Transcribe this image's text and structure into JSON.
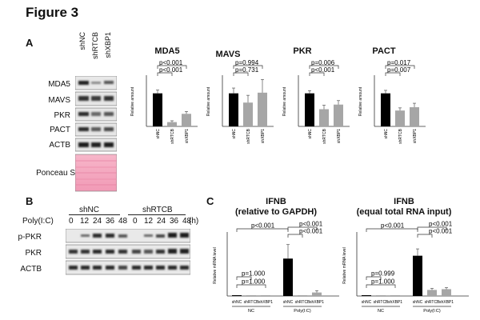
{
  "figure_title": "Figure 3",
  "panels": {
    "A": "A",
    "B": "B",
    "C": "C"
  },
  "panelA": {
    "lanes": [
      "shNC",
      "shRTCB",
      "shXBP1"
    ],
    "blot_rows": [
      "MDA5",
      "MAVS",
      "PKR",
      "PACT",
      "ACTB"
    ],
    "ponceau_label": "Ponceau S"
  },
  "panelB": {
    "group_labels": [
      "shNC",
      "shRTCB"
    ],
    "treatment_label": "Poly(I:C)",
    "timepoints": [
      "0",
      "12",
      "24",
      "36",
      "48",
      "0",
      "12",
      "24",
      "36",
      "48"
    ],
    "time_unit": "(h)",
    "blot_rows": [
      "p-PKR",
      "PKR",
      "ACTB"
    ]
  },
  "colors": {
    "control_bar": "#000000",
    "treated_bar": "#a6a6a6",
    "ponceau": "#f4a9c0"
  },
  "chart_data": [
    {
      "type": "bar",
      "title": "MDA5",
      "categories": [
        "shNC",
        "shRTCB",
        "shXBP1"
      ],
      "values": [
        1.0,
        0.13,
        0.38
      ],
      "ylabel": "Relative amount",
      "ylim": [
        0,
        1.5
      ],
      "annotations": [
        "p<0.001",
        "p<0.001"
      ]
    },
    {
      "type": "bar",
      "title": "MAVS",
      "categories": [
        "shNC",
        "shRTCB",
        "shXBP1"
      ],
      "values": [
        1.0,
        0.72,
        1.02
      ],
      "ylabel": "Relative amount",
      "ylim": [
        0,
        1.5
      ],
      "annotations": [
        "p=0.994",
        "p=0.731"
      ]
    },
    {
      "type": "bar",
      "title": "PKR",
      "categories": [
        "shNC",
        "shRTCB",
        "shXBP1"
      ],
      "values": [
        1.0,
        0.52,
        0.66
      ],
      "ylabel": "Relative amount",
      "ylim": [
        0,
        1.5
      ],
      "annotations": [
        "p=0.006",
        "p<0.001"
      ]
    },
    {
      "type": "bar",
      "title": "PACT",
      "categories": [
        "shNC",
        "shRTCB",
        "shXBP1"
      ],
      "values": [
        1.0,
        0.48,
        0.58
      ],
      "ylabel": "Relative amount",
      "ylim": [
        0,
        1.5
      ],
      "annotations": [
        "p=0.017",
        "p=0.007"
      ]
    },
    {
      "type": "bar",
      "title": "IFNB",
      "subtitle": "(relative to GAPDH)",
      "categories": [
        "shNC",
        "shRTCB",
        "shXBP1",
        "shNC",
        "shRTCB",
        "shXBP1"
      ],
      "values": [
        0,
        0,
        0,
        1600,
        25,
        150
      ],
      "ylabel": "Relative mRNA level",
      "ylim": [
        0,
        2600
      ],
      "groups": [
        "NC",
        "Poly(I:C)"
      ],
      "annotations": [
        "p<0.001",
        "p<0.001",
        "p<0.001",
        "p=1.000",
        "p=1.000"
      ]
    },
    {
      "type": "bar",
      "title": "IFNB",
      "subtitle": "(equal total RNA input)",
      "categories": [
        "shNC",
        "shRTCB",
        "shXBP1",
        "shNC",
        "shRTCB",
        "shXBP1"
      ],
      "values": [
        0.1,
        0.1,
        0.3,
        53,
        8,
        9
      ],
      "ylabel": "Relative mRNA level",
      "ylim": [
        0,
        80
      ],
      "groups": [
        "NC",
        "Poly(I:C)"
      ],
      "annotations": [
        "p<0.001",
        "p<0.001",
        "p<0.001",
        "p=0.999",
        "p=1.000"
      ]
    }
  ]
}
